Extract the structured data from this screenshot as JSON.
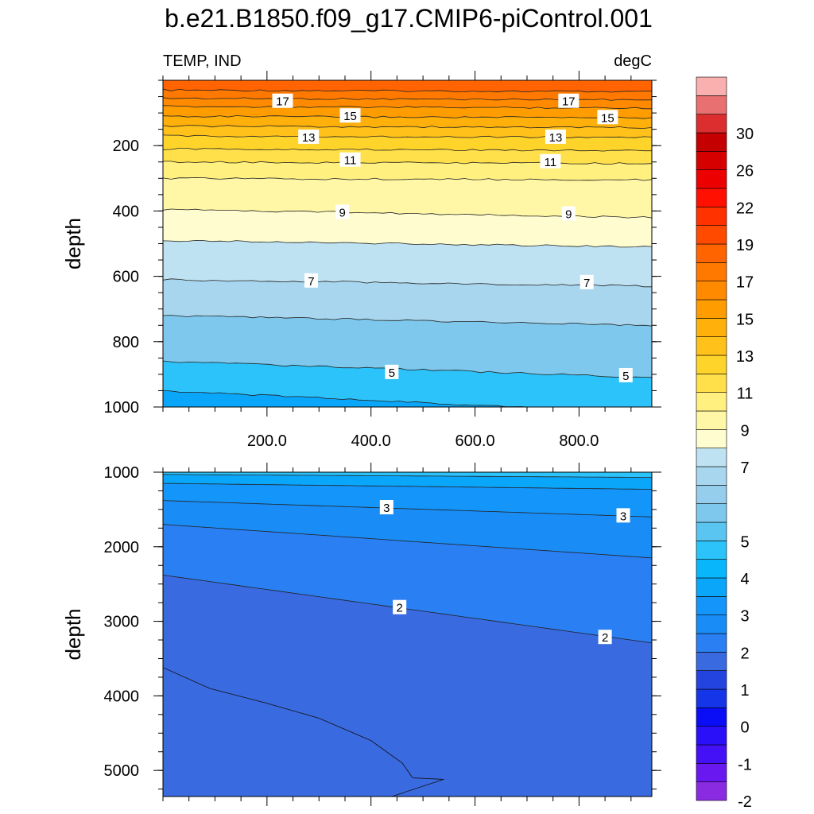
{
  "title": "b.e21.B1850.f09_g17.CMIP6-piControl.001",
  "left_string": "TEMP, IND",
  "right_string": "degC",
  "chart_data": [
    {
      "type": "contour",
      "panel": "upper",
      "ylabel": "depth",
      "xlim": [
        0,
        940
      ],
      "ylim": [
        1000,
        0
      ],
      "xticks": [
        200,
        400,
        600,
        800
      ],
      "xtick_labels": [
        "200.0",
        "400.0",
        "600.0",
        "800.0"
      ],
      "yticks": [
        200,
        400,
        600,
        800,
        1000
      ],
      "ytick_labels": [
        "200",
        "400",
        "600",
        "800",
        "1000"
      ],
      "isotherms": [
        {
          "level": 18,
          "depth_left": 30,
          "depth_right": 35
        },
        {
          "level": 17,
          "depth_left": 55,
          "depth_right": 60
        },
        {
          "level": 16,
          "depth_left": 80,
          "depth_right": 85
        },
        {
          "level": 15,
          "depth_left": 110,
          "depth_right": 115
        },
        {
          "level": 14,
          "depth_left": 140,
          "depth_right": 145
        },
        {
          "level": 13,
          "depth_left": 170,
          "depth_right": 175
        },
        {
          "level": 12,
          "depth_left": 210,
          "depth_right": 215
        },
        {
          "level": 11,
          "depth_left": 250,
          "depth_right": 255
        },
        {
          "level": 10,
          "depth_left": 300,
          "depth_right": 305
        },
        {
          "level": 9,
          "depth_left": 395,
          "depth_right": 420
        },
        {
          "level": 8,
          "depth_left": 490,
          "depth_right": 510
        },
        {
          "level": 7,
          "depth_left": 610,
          "depth_right": 630
        },
        {
          "level": 6,
          "depth_left": 720,
          "depth_right": 750
        },
        {
          "level": 5,
          "depth_left": 860,
          "depth_right": 910
        },
        {
          "level": 4,
          "depth_left": 950,
          "depth_right": 1020
        }
      ],
      "line_labels": [
        {
          "text": "17",
          "x": 230,
          "depth": 65
        },
        {
          "text": "17",
          "x": 780,
          "depth": 65
        },
        {
          "text": "15",
          "x": 360,
          "depth": 110
        },
        {
          "text": "15",
          "x": 855,
          "depth": 115
        },
        {
          "text": "13",
          "x": 280,
          "depth": 175
        },
        {
          "text": "13",
          "x": 755,
          "depth": 175
        },
        {
          "text": "11",
          "x": 360,
          "depth": 245
        },
        {
          "text": "11",
          "x": 745,
          "depth": 250
        },
        {
          "text": "9",
          "x": 345,
          "depth": 405
        },
        {
          "text": "9",
          "x": 780,
          "depth": 410
        },
        {
          "text": "7",
          "x": 285,
          "depth": 615
        },
        {
          "text": "7",
          "x": 815,
          "depth": 620
        },
        {
          "text": "5",
          "x": 440,
          "depth": 895
        },
        {
          "text": "5",
          "x": 890,
          "depth": 905
        }
      ]
    },
    {
      "type": "contour",
      "panel": "lower",
      "ylabel": "depth",
      "xlim": [
        0,
        940
      ],
      "ylim": [
        5350,
        1000
      ],
      "yticks": [
        1000,
        2000,
        3000,
        4000,
        5000
      ],
      "ytick_labels": [
        "1000",
        "2000",
        "3000",
        "4000",
        "5000"
      ],
      "isotherms": [
        {
          "level": 4,
          "depth_left": 1030,
          "depth_right": 1070
        },
        {
          "level": 3.5,
          "depth_left": 1150,
          "depth_right": 1230
        },
        {
          "level": 3,
          "depth_left": 1380,
          "depth_right": 1600
        },
        {
          "level": 2.5,
          "depth_left": 1700,
          "depth_right": 2150
        },
        {
          "level": 2,
          "depth_left": 2380,
          "depth_right": 3290
        }
      ],
      "cold_region": {
        "level": 1,
        "boundary_x": [
          0,
          90,
          200,
          300,
          400,
          460,
          480,
          540,
          440
        ],
        "boundary_depth": [
          3620,
          3900,
          4100,
          4300,
          4600,
          4900,
          5100,
          5120,
          5350
        ]
      },
      "line_labels": [
        {
          "text": "3",
          "x": 430,
          "depth": 1480
        },
        {
          "text": "3",
          "x": 885,
          "depth": 1590
        },
        {
          "text": "2",
          "x": 455,
          "depth": 2820
        },
        {
          "text": "2",
          "x": 850,
          "depth": 3220
        }
      ]
    },
    {
      "type": "colorbar",
      "levels": [
        -2,
        -1.5,
        -1,
        -0.5,
        0,
        0.5,
        1,
        1.5,
        2,
        2.5,
        3,
        3.5,
        4,
        4.5,
        5,
        5.5,
        6,
        6.5,
        7,
        8,
        9,
        10,
        11,
        12,
        13,
        14,
        15,
        16,
        17,
        18,
        19,
        20,
        22,
        24,
        26,
        28,
        30,
        32,
        34
      ],
      "colors": [
        "#8a2be2",
        "#6a18f0",
        "#4410f5",
        "#2a10f8",
        "#0a0ef7",
        "#1535e8",
        "#2444e0",
        "#3a6ae0",
        "#2a7ff2",
        "#1a8cf6",
        "#1495fa",
        "#0aa6fa",
        "#08b6fc",
        "#2cc3fa",
        "#5ac5f0",
        "#7dc8ec",
        "#94ceec",
        "#a8d6ee",
        "#bfe2f2",
        "#fffdd0",
        "#fff6a6",
        "#fff080",
        "#ffe04a",
        "#ffd42a",
        "#ffc11a",
        "#ffb00a",
        "#ff9c00",
        "#ff8a00",
        "#ff7800",
        "#ff6400",
        "#ff4a00",
        "#ff3200",
        "#ff1000",
        "#ec0000",
        "#d60000",
        "#c40000",
        "#dc2e2e",
        "#e87070",
        "#fbb0b0"
      ],
      "tick_labels": [
        "30",
        "26",
        "22",
        "19",
        "17",
        "15",
        "13",
        "11",
        "9",
        "7",
        "5",
        "4",
        "3",
        "2",
        "1",
        "0",
        "-1",
        "-2"
      ],
      "tick_values": [
        30,
        26,
        22,
        19,
        17,
        15,
        13,
        11,
        9,
        7,
        5,
        4,
        3,
        2,
        1,
        0,
        -1,
        -2
      ]
    }
  ]
}
